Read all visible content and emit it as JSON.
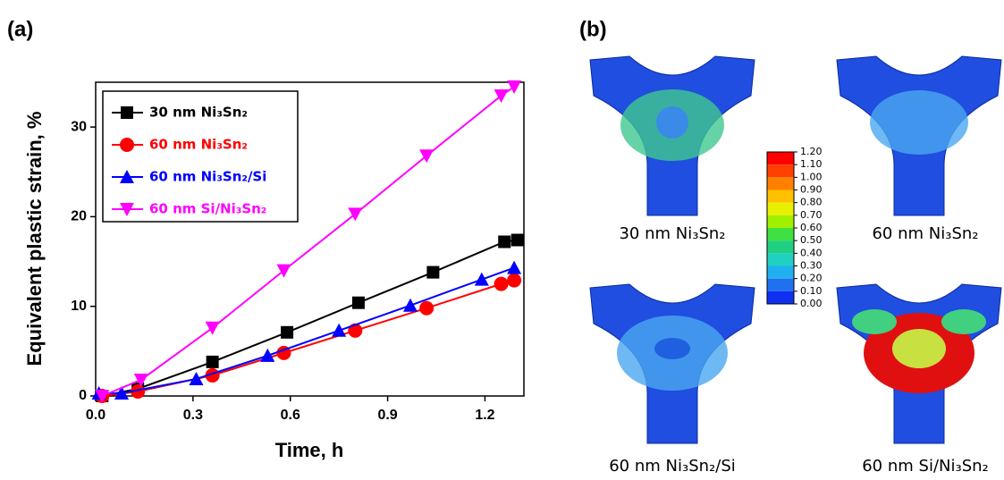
{
  "chart_data": {
    "type": "line",
    "xlabel": "Time, h",
    "ylabel": "Equivalent plastic strain, %",
    "xlim": [
      0,
      1.32
    ],
    "ylim": [
      0,
      35
    ],
    "xticks": [
      {
        "value": 0,
        "label": "0.0"
      },
      0.3,
      0.6,
      0.9,
      1.2
    ],
    "yticks": [
      0,
      10,
      20,
      30
    ],
    "legend": "upper left",
    "series": [
      {
        "name": "30 nm Ni₃Sn₂",
        "color": "#000000",
        "marker": "square",
        "x": [
          0.02,
          0.13,
          0.36,
          0.59,
          0.81,
          1.04,
          1.26,
          1.3
        ],
        "values": [
          0,
          0.8,
          3.8,
          7.1,
          10.4,
          13.8,
          17.2,
          17.4
        ]
      },
      {
        "name": "60 nm Ni₃Sn₂",
        "color": "#ff0000",
        "marker": "circle",
        "x": [
          0.02,
          0.13,
          0.36,
          0.58,
          0.8,
          1.02,
          1.25,
          1.29
        ],
        "values": [
          0,
          0.5,
          2.3,
          4.8,
          7.3,
          9.8,
          12.5,
          12.9
        ]
      },
      {
        "name": "60 nm Ni₃Sn₂/Si",
        "color": "#0000ff",
        "marker": "triangle",
        "x": [
          0.01,
          0.08,
          0.31,
          0.53,
          0.75,
          0.97,
          1.19,
          1.29
        ],
        "values": [
          0.3,
          0.3,
          1.9,
          4.5,
          7.3,
          10.1,
          13.0,
          14.3
        ]
      },
      {
        "name": "60 nm Si/Ni₃Sn₂",
        "color": "#ff00ff",
        "marker": "triangle-down",
        "x": [
          0.02,
          0.14,
          0.36,
          0.58,
          0.8,
          1.02,
          1.25,
          1.29
        ],
        "values": [
          0,
          1.8,
          7.6,
          14.0,
          20.3,
          26.8,
          33.5,
          34.5
        ]
      }
    ]
  },
  "panel_labels": [
    "(a)",
    "(b)"
  ],
  "panel_b": {
    "colorbar": {
      "colors": [
        "#ff0000",
        "#ff4000",
        "#ff8000",
        "#ffc000",
        "#e8f000",
        "#a0f000",
        "#40e040",
        "#20d080",
        "#20d0c0",
        "#20b0f0",
        "#2070f0",
        "#1030f0"
      ],
      "ticks": [
        {
          "value": 1.2,
          "label": "1.20"
        },
        {
          "value": 1.1,
          "label": "1.10"
        },
        {
          "value": 1.0,
          "label": "1.00"
        },
        {
          "value": 0.9,
          "label": "0.90"
        },
        {
          "value": 0.8,
          "label": "0.80"
        },
        {
          "value": 0.7,
          "label": "0.70"
        },
        {
          "value": 0.6,
          "label": "0.60"
        },
        {
          "value": 0.5,
          "label": "0.50"
        },
        {
          "value": 0.4,
          "label": "0.40"
        },
        {
          "value": 0.3,
          "label": "0.30"
        },
        {
          "value": 0.2,
          "label": "0.20"
        },
        {
          "value": 0.1,
          "label": "0.10"
        },
        {
          "value": 0,
          "label": "0.00"
        }
      ]
    },
    "panels": [
      {
        "label": "30 nm Ni₃Sn₂"
      },
      {
        "label": "60 nm Ni₃Sn₂"
      },
      {
        "label": "60 nm Ni₃Sn₂/Si"
      },
      {
        "label": "60 nm Si/Ni₃Sn₂"
      }
    ]
  }
}
